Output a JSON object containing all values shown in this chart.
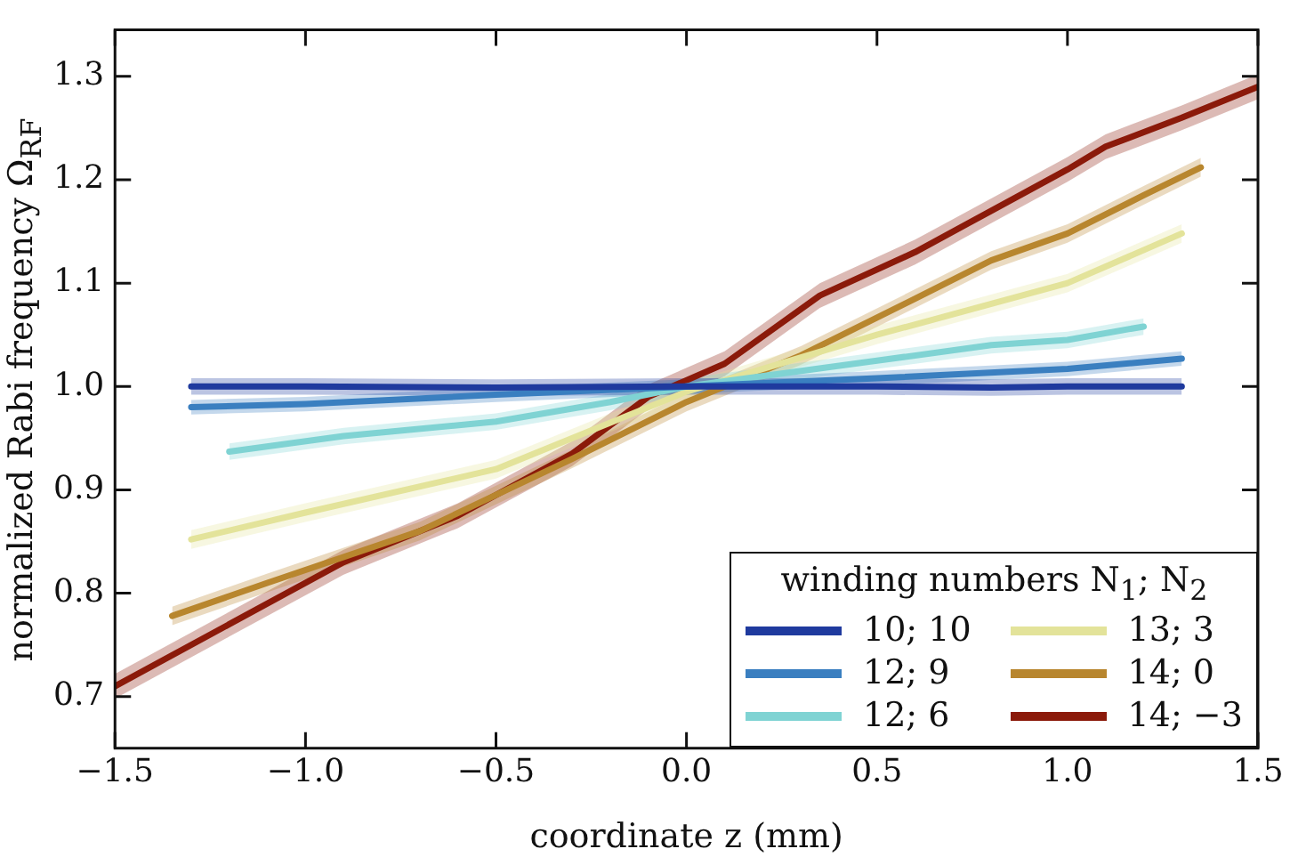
{
  "chart_data": {
    "type": "line",
    "xlabel": "coordinate z (mm)",
    "ylabel": "normalized Rabi frequency Ω$_{RF}$",
    "legend_title": "winding numbers N$_{1}$; N$_{2}$",
    "legend": "bottom right",
    "grid": false,
    "marker": "none",
    "line_style": "solid",
    "xlim": [
      -1.5,
      1.5
    ],
    "xticks": [
      {
        "value": -1.5,
        "label": "−1.5"
      },
      {
        "value": -1.0,
        "label": "−1.0"
      },
      {
        "value": -0.5,
        "label": "−0.5"
      },
      {
        "value": 0,
        "label": "0.0"
      },
      {
        "value": 0.5,
        "label": "0.5"
      },
      {
        "value": 1.0,
        "label": "1.0"
      },
      {
        "value": 1.5,
        "label": "1.5"
      }
    ],
    "ylim": [
      0.65,
      1.345
    ],
    "yticks": [
      {
        "value": 0.7,
        "label": "0.7"
      },
      {
        "value": 0.8,
        "label": "0.8"
      },
      {
        "value": 0.9,
        "label": "0.9"
      },
      {
        "value": 1.0,
        "label": "1.0"
      },
      {
        "value": 1.1,
        "label": "1.1"
      },
      {
        "value": 1.2,
        "label": "1.2"
      },
      {
        "value": 1.3,
        "label": "1.3"
      }
    ],
    "series": [
      {
        "name": "10; 10",
        "color": "#1f3a9e",
        "x": [
          -1.3,
          -1.0,
          -0.5,
          0,
          0.5,
          0.8,
          1.0,
          1.3
        ],
        "values": [
          1.0,
          1.0,
          0.999,
          1.0,
          1.0,
          0.999,
          1.0,
          1.0
        ],
        "lower": [
          0.992,
          0.992,
          0.991,
          0.992,
          0.992,
          0.991,
          0.992,
          0.992
        ],
        "upper": [
          1.008,
          1.008,
          1.007,
          1.008,
          1.008,
          1.007,
          1.008,
          1.008
        ]
      },
      {
        "name": "12; 9",
        "color": "#3a7fc0",
        "x": [
          -1.3,
          -1.0,
          -0.5,
          0,
          0.5,
          1.0,
          1.3
        ],
        "values": [
          0.98,
          0.983,
          0.992,
          1.0,
          1.008,
          1.017,
          1.027
        ],
        "lower": [
          0.973,
          0.976,
          0.985,
          0.993,
          1.001,
          1.01,
          1.02
        ],
        "upper": [
          0.987,
          0.99,
          0.999,
          1.007,
          1.015,
          1.024,
          1.034
        ]
      },
      {
        "name": "12; 6",
        "color": "#7fd3d3",
        "x": [
          -1.2,
          -0.9,
          -0.5,
          -0.2,
          0,
          0.5,
          0.8,
          1.0,
          1.2
        ],
        "values": [
          0.937,
          0.952,
          0.966,
          0.985,
          1.0,
          1.025,
          1.04,
          1.045,
          1.058
        ],
        "lower": [
          0.929,
          0.944,
          0.958,
          0.977,
          0.992,
          1.017,
          1.032,
          1.037,
          1.05
        ],
        "upper": [
          0.945,
          0.96,
          0.974,
          0.993,
          1.008,
          1.033,
          1.048,
          1.053,
          1.066
        ]
      },
      {
        "name": "13; 3",
        "color": "#e3e39a",
        "x": [
          -1.3,
          -1.0,
          -0.5,
          0,
          0.5,
          1.0,
          1.3
        ],
        "values": [
          0.852,
          0.878,
          0.92,
          0.995,
          1.05,
          1.1,
          1.148
        ],
        "lower": [
          0.843,
          0.869,
          0.911,
          0.986,
          1.041,
          1.091,
          1.139
        ],
        "upper": [
          0.861,
          0.887,
          0.929,
          1.004,
          1.059,
          1.109,
          1.157
        ]
      },
      {
        "name": "14; 0",
        "color": "#b8862e",
        "x": [
          -1.35,
          -1.1,
          -0.7,
          -0.3,
          0,
          0.3,
          0.6,
          0.8,
          1.0,
          1.2,
          1.35
        ],
        "values": [
          0.778,
          0.81,
          0.86,
          0.93,
          0.985,
          1.03,
          1.085,
          1.122,
          1.148,
          1.185,
          1.212
        ],
        "lower": [
          0.769,
          0.801,
          0.851,
          0.921,
          0.976,
          1.021,
          1.076,
          1.113,
          1.139,
          1.176,
          1.203
        ],
        "upper": [
          0.787,
          0.819,
          0.869,
          0.939,
          0.994,
          1.039,
          1.094,
          1.131,
          1.157,
          1.194,
          1.221
        ]
      },
      {
        "name": "14; −3",
        "color": "#8b1a0a",
        "x": [
          -1.5,
          -1.2,
          -0.9,
          -0.6,
          -0.3,
          -0.1,
          0.1,
          0.35,
          0.6,
          0.8,
          1.0,
          1.1,
          1.3,
          1.5
        ],
        "values": [
          0.71,
          0.77,
          0.83,
          0.875,
          0.935,
          0.99,
          1.022,
          1.088,
          1.13,
          1.17,
          1.21,
          1.232,
          1.26,
          1.29
        ],
        "lower": [
          0.698,
          0.758,
          0.818,
          0.863,
          0.923,
          0.978,
          1.01,
          1.076,
          1.118,
          1.158,
          1.198,
          1.22,
          1.248,
          1.278
        ],
        "upper": [
          0.722,
          0.782,
          0.842,
          0.887,
          0.947,
          1.002,
          1.034,
          1.1,
          1.142,
          1.182,
          1.222,
          1.244,
          1.272,
          1.302
        ]
      }
    ]
  }
}
